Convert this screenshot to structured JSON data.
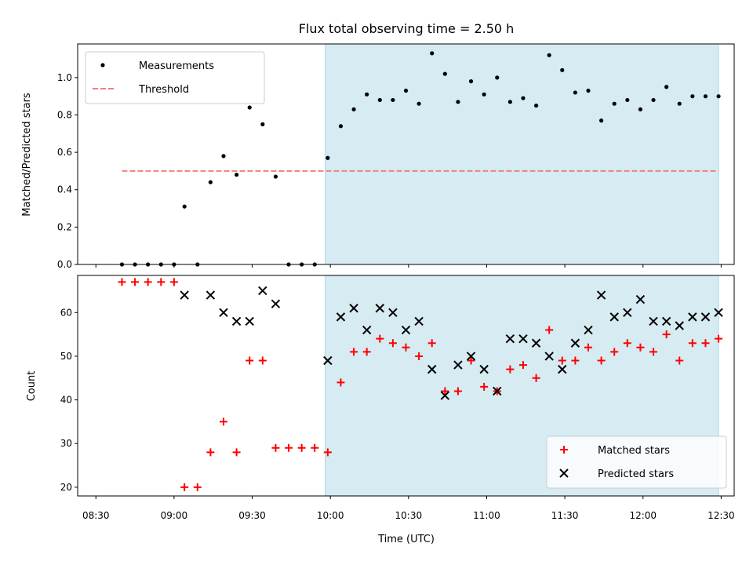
{
  "chart_data": [
    {
      "type": "scatter",
      "title": "Flux total observing time = 2.50 h",
      "ylabel": "Matched/Predicted stars",
      "xlabel": "",
      "ylim": [
        0,
        1.18
      ],
      "yticks": [
        "0.0",
        "0.2",
        "0.4",
        "0.6",
        "0.8",
        "1.0"
      ],
      "legend_position": "top-left",
      "shaded_span": {
        "from": "09:58",
        "to": "12:29",
        "color": "#add8e6"
      },
      "series": [
        {
          "name": "Measurements",
          "marker": "dot",
          "color": "#000000",
          "x": [
            "08:40",
            "08:45",
            "08:50",
            "08:55",
            "09:00",
            "09:04",
            "09:09",
            "09:14",
            "09:19",
            "09:24",
            "09:29",
            "09:34",
            "09:39",
            "09:44",
            "09:49",
            "09:54",
            "09:59",
            "10:04",
            "10:09",
            "10:14",
            "10:19",
            "10:24",
            "10:29",
            "10:34",
            "10:39",
            "10:44",
            "10:49",
            "10:54",
            "10:59",
            "11:04",
            "11:09",
            "11:14",
            "11:19",
            "11:24",
            "11:29",
            "11:34",
            "11:39",
            "11:44",
            "11:49",
            "11:54",
            "11:59",
            "12:04",
            "12:09",
            "12:14",
            "12:19",
            "12:24",
            "12:29"
          ],
          "y": [
            0,
            0,
            0,
            0,
            0,
            0.31,
            0,
            0.44,
            0.58,
            0.48,
            0.84,
            0.75,
            0.47,
            0,
            0,
            0,
            0.57,
            0.74,
            0.83,
            0.91,
            0.88,
            0.88,
            0.93,
            0.86,
            1.13,
            1.02,
            0.87,
            0.98,
            0.91,
            1.0,
            0.87,
            0.89,
            0.85,
            1.12,
            1.04,
            0.92,
            0.93,
            0.77,
            0.86,
            0.88,
            0.83,
            0.88,
            0.95,
            0.86,
            0.9,
            0.9,
            0.9
          ]
        },
        {
          "name": "Threshold",
          "style": "dashed-line",
          "color": "#f08080",
          "x": [
            "08:40",
            "12:29"
          ],
          "y": [
            0.5,
            0.5
          ]
        }
      ]
    },
    {
      "type": "scatter",
      "title": "",
      "xlabel": "Time (UTC)",
      "ylabel": "Count",
      "ylim": [
        18,
        68.5
      ],
      "yticks": [
        "20",
        "30",
        "40",
        "50",
        "60"
      ],
      "xticks": [
        "08:30",
        "09:00",
        "09:30",
        "10:00",
        "10:30",
        "11:00",
        "11:30",
        "12:00",
        "12:30"
      ],
      "legend_position": "bottom-right",
      "shaded_span": {
        "from": "09:58",
        "to": "12:29",
        "color": "#add8e6"
      },
      "series": [
        {
          "name": "Matched stars",
          "marker": "plus",
          "color": "#ff0000",
          "x": [
            "08:40",
            "08:45",
            "08:50",
            "08:55",
            "09:00",
            "09:04",
            "09:09",
            "09:14",
            "09:19",
            "09:24",
            "09:29",
            "09:34",
            "09:39",
            "09:44",
            "09:49",
            "09:54",
            "09:59",
            "10:04",
            "10:09",
            "10:14",
            "10:19",
            "10:24",
            "10:29",
            "10:34",
            "10:39",
            "10:44",
            "10:49",
            "10:54",
            "10:59",
            "11:04",
            "11:09",
            "11:14",
            "11:19",
            "11:24",
            "11:29",
            "11:34",
            "11:39",
            "11:44",
            "11:49",
            "11:54",
            "11:59",
            "12:04",
            "12:09",
            "12:14",
            "12:19",
            "12:24",
            "12:29"
          ],
          "y": [
            67,
            67,
            67,
            67,
            67,
            20,
            20,
            28,
            35,
            28,
            49,
            49,
            29,
            29,
            29,
            29,
            28,
            44,
            51,
            51,
            54,
            53,
            52,
            50,
            53,
            42,
            42,
            49,
            43,
            42,
            47,
            48,
            45,
            56,
            49,
            49,
            52,
            49,
            51,
            53,
            52,
            51,
            55,
            49,
            53,
            53,
            54
          ]
        },
        {
          "name": "Predicted stars",
          "marker": "x",
          "color": "#000000",
          "x": [
            "09:04",
            "09:14",
            "09:19",
            "09:24",
            "09:29",
            "09:34",
            "09:39",
            "09:59",
            "10:04",
            "10:09",
            "10:14",
            "10:19",
            "10:24",
            "10:29",
            "10:34",
            "10:39",
            "10:44",
            "10:49",
            "10:54",
            "10:59",
            "11:04",
            "11:09",
            "11:14",
            "11:19",
            "11:24",
            "11:29",
            "11:34",
            "11:39",
            "11:44",
            "11:49",
            "11:54",
            "11:59",
            "12:04",
            "12:09",
            "12:14",
            "12:19",
            "12:24",
            "12:29"
          ],
          "y": [
            64,
            64,
            60,
            58,
            58,
            65,
            62,
            49,
            59,
            61,
            56,
            61,
            60,
            56,
            58,
            47,
            41,
            48,
            50,
            47,
            42,
            54,
            54,
            53,
            50,
            47,
            53,
            56,
            64,
            59,
            60,
            63,
            58,
            58,
            57,
            59,
            59,
            60
          ]
        }
      ]
    }
  ]
}
